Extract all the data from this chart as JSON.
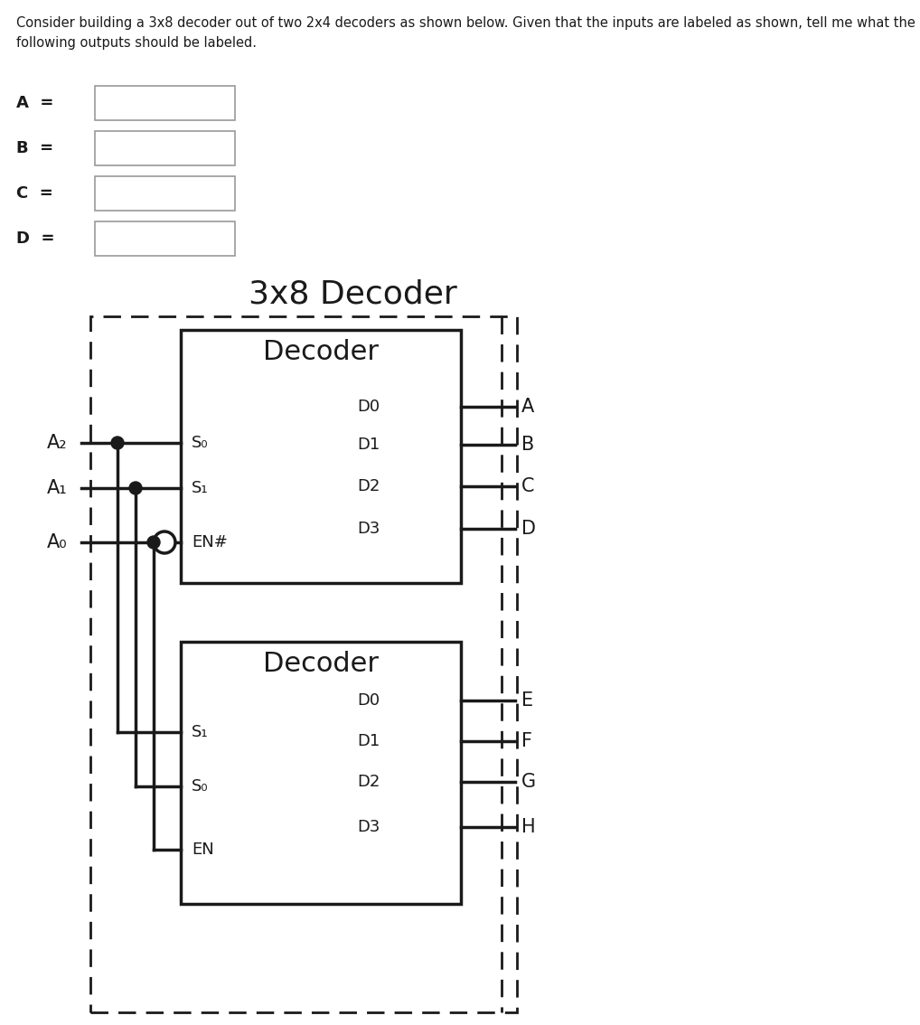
{
  "title_text": "Consider building a 3x8 decoder out of two 2x4 decoders as shown below. Given that the inputs are labeled as shown, tell me what the\nfollowing outputs should be labeled.",
  "decoder_title": "3x8 Decoder",
  "bg_color": "#ffffff",
  "text_color": "#1a1a1a",
  "line_color": "#1a1a1a",
  "input_labels": [
    "A",
    "B",
    "C",
    "D"
  ],
  "dec1_title": "Decoder",
  "dec1_input_labels": [
    "S₀",
    "S₁",
    "EN#"
  ],
  "dec1_output_labels_left": [
    "D0",
    "D1",
    "D2",
    "D3"
  ],
  "dec1_output_labels_right": [
    "A",
    "B",
    "C",
    "D"
  ],
  "dec2_title": "Decoder",
  "dec2_input_labels": [
    "S₁",
    "S₀",
    "EN"
  ],
  "dec2_output_labels_left": [
    "D0",
    "D1",
    "D2",
    "D3"
  ],
  "dec2_output_labels_right": [
    "E",
    "F",
    "G",
    "H"
  ],
  "A_labels": [
    "A₂",
    "A₁",
    "A₀"
  ]
}
